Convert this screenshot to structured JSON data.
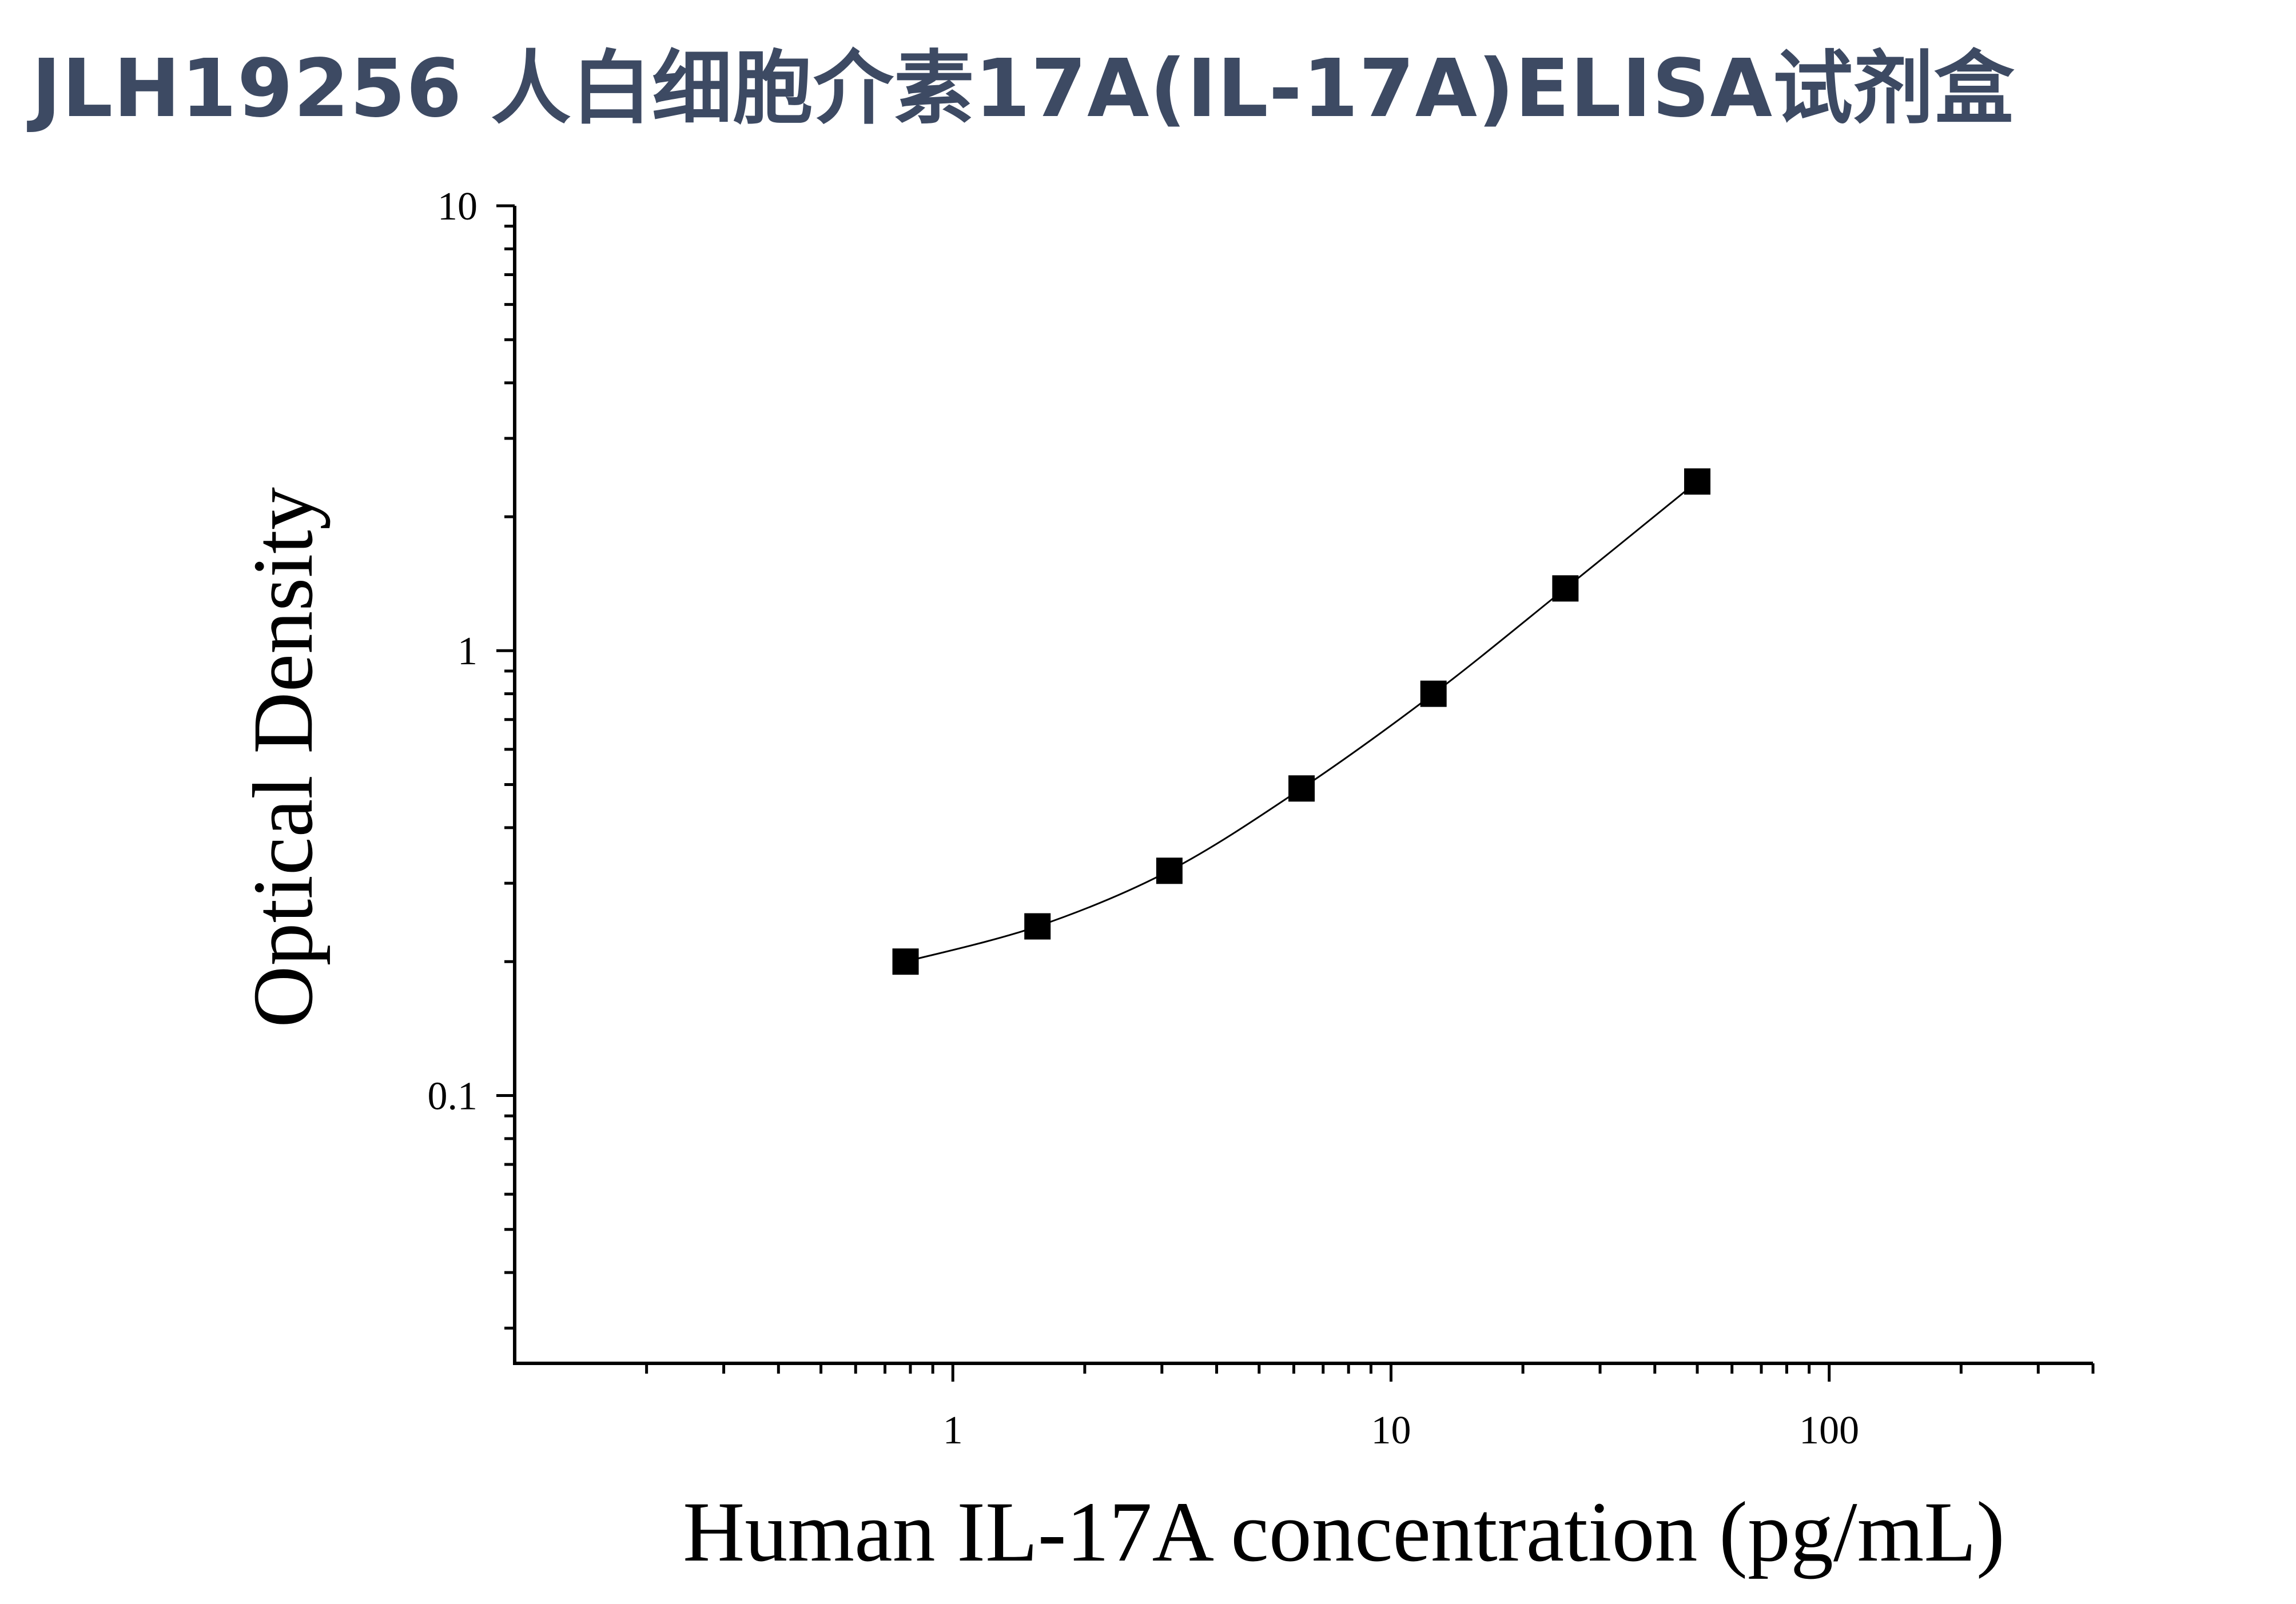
{
  "title": "JLH19256 人白细胞介素17A(IL-17A)ELISA试剂盒",
  "chart_data": {
    "type": "scatter",
    "xlabel": "Human IL-17A concentration (pg/mL)",
    "ylabel": "Optical Density",
    "xscale": "log",
    "yscale": "log",
    "xlim": [
      0.1,
      400
    ],
    "ylim": [
      0.025,
      10
    ],
    "xticks": [
      1,
      10,
      100
    ],
    "xtick_labels": [
      "1",
      "10",
      "100"
    ],
    "yticks": [
      0.1,
      1,
      10
    ],
    "ytick_labels": [
      "0.1",
      "1",
      "10"
    ],
    "grid": false,
    "marker": "square",
    "color": "#000000",
    "x": [
      0.78,
      1.56,
      3.12,
      6.25,
      12.5,
      25,
      50
    ],
    "y": [
      0.2,
      0.24,
      0.32,
      0.49,
      0.8,
      1.38,
      2.4
    ],
    "fit_curve": true
  }
}
